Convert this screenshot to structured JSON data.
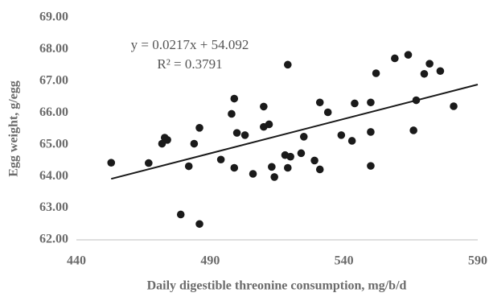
{
  "chart_data": {
    "type": "scatter",
    "xlabel": "Daily digestible threonine consumption, mg/b/d",
    "ylabel": "Egg weight, g/egg",
    "x": [
      453,
      467,
      472,
      473,
      474,
      482,
      479,
      484,
      486,
      486,
      494,
      498,
      499,
      499,
      500,
      503,
      506,
      510,
      510,
      512,
      513,
      514,
      518,
      519,
      519,
      520,
      524,
      525,
      529,
      531,
      531,
      534,
      539,
      543,
      544,
      550,
      550,
      550,
      552,
      559,
      564,
      566,
      567,
      570,
      572,
      576,
      581
    ],
    "values": [
      64.43,
      64.42,
      65.03,
      65.22,
      65.15,
      64.32,
      62.8,
      65.03,
      65.53,
      62.5,
      64.53,
      65.97,
      66.45,
      64.27,
      65.37,
      65.3,
      64.08,
      65.56,
      66.2,
      65.64,
      64.3,
      63.98,
      64.67,
      64.27,
      67.52,
      64.62,
      64.73,
      65.25,
      64.5,
      66.33,
      64.22,
      66.02,
      65.3,
      65.12,
      66.3,
      66.33,
      65.4,
      64.33,
      67.25,
      67.72,
      67.83,
      65.45,
      66.4,
      67.23,
      67.55,
      67.32,
      66.21
    ],
    "color": "#1a1a1a",
    "trendline": {
      "equation": "y = 0.0217x + 54.092",
      "r_squared": "R² = 0.3791",
      "slope": 0.0217,
      "intercept": 54.092,
      "color": "#1a1a1a"
    },
    "xlim": [
      440,
      590
    ],
    "xticks": [
      440,
      490,
      540,
      590
    ],
    "ylim": [
      62,
      69
    ],
    "yticks": [
      {
        "value": 62,
        "label": "62.00"
      },
      {
        "value": 63,
        "label": "63.00"
      },
      {
        "value": 64,
        "label": "64.00"
      },
      {
        "value": 65,
        "label": "65.00"
      },
      {
        "value": 66,
        "label": "66.00"
      },
      {
        "value": 67,
        "label": "67.00"
      },
      {
        "value": 68,
        "label": "68.00"
      },
      {
        "value": 69,
        "label": "69.00"
      }
    ]
  }
}
